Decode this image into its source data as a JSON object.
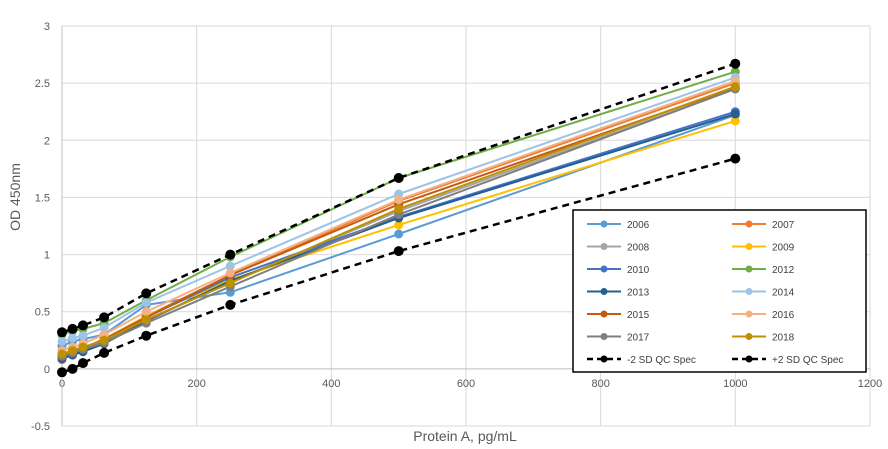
{
  "chart_data": {
    "type": "line",
    "title": "",
    "xlabel": "Protein A, pg/mL",
    "ylabel": "OD 450nm",
    "xlim": [
      0,
      1200
    ],
    "ylim": [
      -0.5,
      3
    ],
    "xticks": [
      0,
      200,
      400,
      600,
      800,
      1000,
      1200
    ],
    "yticks": [
      -0.5,
      0,
      0.5,
      1,
      1.5,
      2,
      2.5,
      3
    ],
    "grid": true,
    "legend_position": "lower-right",
    "x": [
      0,
      15.6,
      31.25,
      62.5,
      125,
      250,
      500,
      1000
    ],
    "series": [
      {
        "name": "2006",
        "color": "#5B9BD5",
        "dash": false,
        "values": [
          0.2,
          0.24,
          0.26,
          0.3,
          0.56,
          0.67,
          1.18,
          2.22
        ]
      },
      {
        "name": "2007",
        "color": "#ED7D31",
        "dash": false,
        "values": [
          0.08,
          0.13,
          0.16,
          0.25,
          0.46,
          0.82,
          1.47,
          2.5
        ]
      },
      {
        "name": "2008",
        "color": "#A5A5A5",
        "dash": false,
        "values": [
          0.1,
          0.14,
          0.17,
          0.24,
          0.42,
          0.76,
          1.38,
          2.45
        ]
      },
      {
        "name": "2009",
        "color": "#FFC000",
        "dash": false,
        "values": [
          0.12,
          0.15,
          0.18,
          0.26,
          0.46,
          0.78,
          1.26,
          2.17
        ]
      },
      {
        "name": "2010",
        "color": "#4472C4",
        "dash": false,
        "values": [
          0.1,
          0.13,
          0.16,
          0.24,
          0.45,
          0.8,
          1.33,
          2.25
        ]
      },
      {
        "name": "2012",
        "color": "#70AD47",
        "dash": false,
        "values": [
          0.3,
          0.33,
          0.35,
          0.4,
          0.6,
          0.98,
          1.67,
          2.6
        ]
      },
      {
        "name": "2013",
        "color": "#255E91",
        "dash": false,
        "values": [
          0.09,
          0.12,
          0.15,
          0.22,
          0.42,
          0.77,
          1.32,
          2.23
        ]
      },
      {
        "name": "2014",
        "color": "#9DC3E6",
        "dash": false,
        "values": [
          0.24,
          0.27,
          0.29,
          0.36,
          0.58,
          0.9,
          1.53,
          2.55
        ]
      },
      {
        "name": "2015",
        "color": "#C55A11",
        "dash": false,
        "values": [
          0.12,
          0.15,
          0.18,
          0.26,
          0.45,
          0.82,
          1.44,
          2.46
        ]
      },
      {
        "name": "2016",
        "color": "#F4B183",
        "dash": false,
        "values": [
          0.16,
          0.19,
          0.22,
          0.3,
          0.5,
          0.84,
          1.48,
          2.52
        ]
      },
      {
        "name": "2017",
        "color": "#7F7F7F",
        "dash": false,
        "values": [
          0.11,
          0.14,
          0.17,
          0.23,
          0.4,
          0.72,
          1.35,
          2.45
        ]
      },
      {
        "name": "2018",
        "color": "#BF9000",
        "dash": false,
        "values": [
          0.13,
          0.16,
          0.19,
          0.25,
          0.43,
          0.75,
          1.4,
          2.47
        ]
      },
      {
        "name": "-2 SD QC Spec",
        "color": "#000000",
        "dash": true,
        "values": [
          -0.03,
          0.0,
          0.05,
          0.14,
          0.29,
          0.56,
          1.03,
          1.84
        ]
      },
      {
        "name": "+2 SD QC Spec",
        "color": "#000000",
        "dash": true,
        "values": [
          0.32,
          0.35,
          0.38,
          0.45,
          0.66,
          1.0,
          1.67,
          2.67
        ]
      }
    ]
  }
}
